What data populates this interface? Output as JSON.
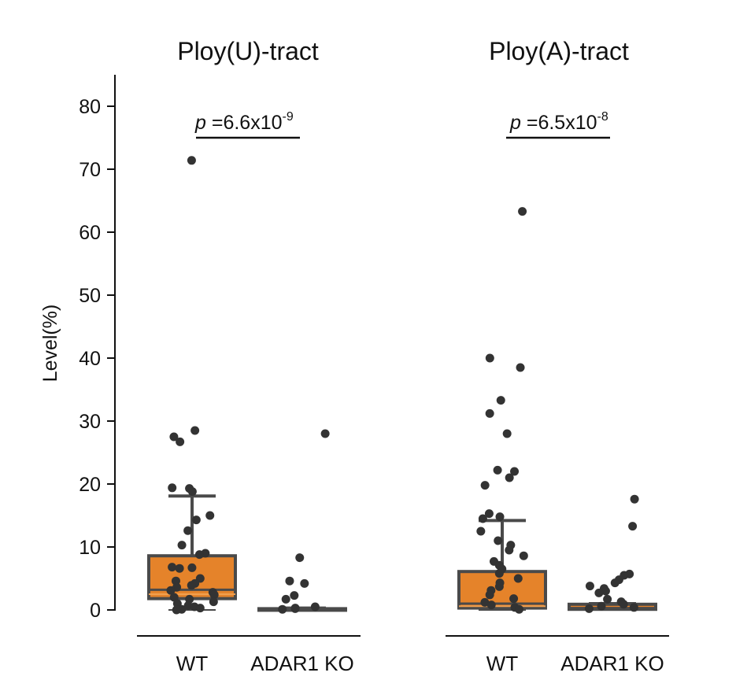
{
  "chart_data": [
    {
      "type": "box",
      "title": "Ploy(U)-tract",
      "ylabel": "Level(%)",
      "ylim": [
        0,
        85
      ],
      "yticks": [
        0,
        10,
        20,
        30,
        40,
        50,
        60,
        70,
        80
      ],
      "categories": [
        "WT",
        "ADAR1 KO"
      ],
      "significance": {
        "p": "p",
        "text": " =6.6x10",
        "exp": "-9"
      },
      "boxes": [
        {
          "category": "WT",
          "min": 0,
          "q1": 1.8,
          "median": 3.2,
          "q3": 8.6,
          "max": 18.1,
          "inner_line": 2.5
        },
        {
          "category": "ADAR1 KO",
          "min": 0,
          "q1": 0,
          "median": 0.1,
          "q3": 0.2,
          "max": 0.3
        }
      ],
      "points": [
        {
          "category": "WT",
          "values": [
            71.4,
            28.5,
            27.5,
            26.7,
            19.3,
            18.8,
            19.4,
            15.0,
            14.3,
            12.6,
            10.3,
            9.0,
            8.8,
            6.8,
            6.7,
            6.6,
            5.0,
            4.6,
            4.2,
            3.9,
            3.6,
            3.1,
            2.8,
            2.4,
            2.0,
            1.7,
            1.3,
            1.0,
            0.7,
            0.5,
            0.3,
            0.1,
            0.0
          ]
        },
        {
          "category": "ADAR1 KO",
          "values": [
            28.0,
            8.3,
            4.6,
            4.2,
            2.3,
            1.7,
            0.5,
            0.3,
            0.2,
            0.1
          ]
        }
      ]
    },
    {
      "type": "box",
      "title": "Ploy(A)-tract",
      "ylim": [
        0,
        85
      ],
      "categories": [
        "WT",
        "ADAR1 KO"
      ],
      "significance": {
        "p": "p",
        "text": " =6.5x10",
        "exp": "-8"
      },
      "boxes": [
        {
          "category": "WT",
          "min": 0,
          "q1": 0.3,
          "median": 1.0,
          "q3": 6.1,
          "max": 14.2,
          "inner_line": 0.6
        },
        {
          "category": "ADAR1 KO",
          "min": 0,
          "q1": 0.1,
          "median": 0.3,
          "q3": 0.9,
          "max": 1.0
        }
      ],
      "points": [
        {
          "category": "WT",
          "values": [
            63.3,
            40.0,
            38.5,
            33.3,
            31.2,
            28.0,
            22.2,
            22.0,
            21.0,
            19.8,
            15.3,
            14.8,
            14.5,
            12.5,
            11.0,
            10.3,
            9.5,
            8.6,
            7.7,
            7.1,
            6.5,
            5.8,
            5.0,
            4.3,
            3.7,
            3.1,
            2.4,
            1.8,
            1.2,
            0.8,
            0.4,
            0.1
          ]
        },
        {
          "category": "ADAR1 KO",
          "values": [
            17.6,
            13.3,
            5.7,
            5.5,
            4.8,
            4.3,
            3.8,
            3.4,
            3.0,
            2.7,
            1.7,
            1.3,
            0.9,
            0.6,
            0.4,
            0.2
          ]
        }
      ]
    }
  ],
  "colors": {
    "box_fill": "#E5832A",
    "box_edge": "#4A4A4A",
    "median": "#4A4A4A",
    "points": "#333333",
    "axis": "#111111"
  }
}
